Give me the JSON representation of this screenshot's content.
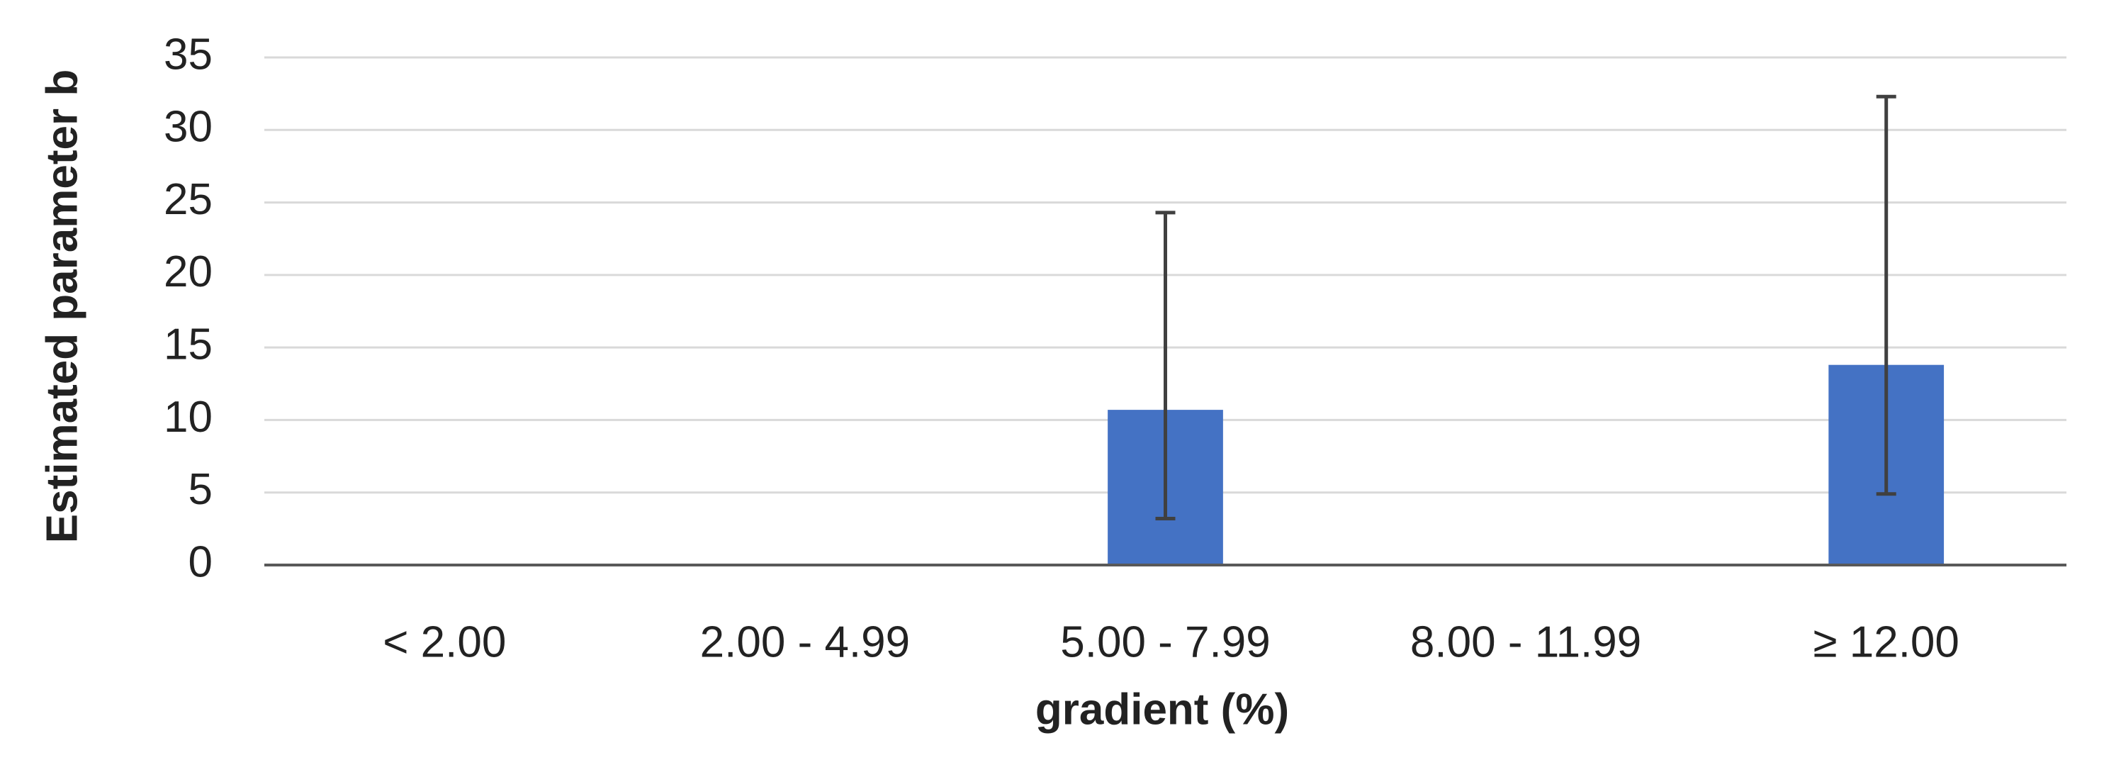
{
  "chart_data": {
    "type": "bar",
    "x_label": "gradient (%)",
    "y_label": "Estimated parameter b",
    "categories": [
      "< 2.00",
      "2.00 - 4.99",
      "5.00 - 7.99",
      "8.00 - 11.99",
      "≥ 12.00"
    ],
    "values": [
      null,
      null,
      10.7,
      null,
      13.8
    ],
    "errors_minus": [
      null,
      null,
      7.5,
      null,
      8.9
    ],
    "errors_plus": [
      null,
      null,
      13.6,
      null,
      18.5
    ],
    "color": "#4472c4",
    "error_color": "#404040",
    "ylim": [
      0,
      35
    ],
    "yticks": [
      0,
      5,
      10,
      15,
      20,
      25,
      30,
      35
    ],
    "grid": true
  }
}
